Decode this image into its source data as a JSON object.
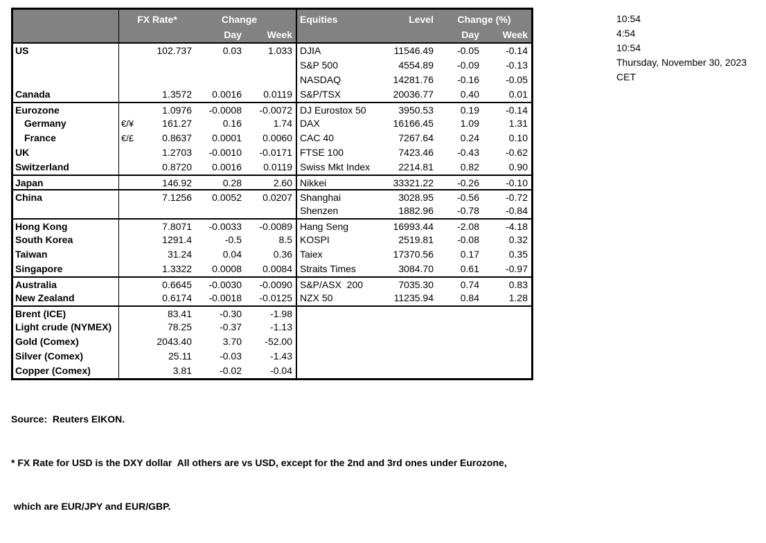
{
  "table": {
    "header": {
      "fx_rate": "FX Rate*",
      "change": "Change",
      "day": "Day",
      "week": "Week",
      "equities": "Equities",
      "level": "Level",
      "change_pct": "Change (%)"
    },
    "header_colors": {
      "background": "#828282",
      "text": "#ffffff",
      "border": "#000000"
    },
    "rows": [
      {
        "name": "US",
        "pair": "",
        "fx": "102.737",
        "fx_day": "0.03",
        "fx_week": "1.033",
        "eq": "DJIA",
        "level": "11546.49",
        "eq_day": "-0.05",
        "eq_week": "-0.14"
      },
      {
        "name": "",
        "eq": "S&P 500",
        "level": "4554.89",
        "eq_day": "-0.09",
        "eq_week": "-0.13"
      },
      {
        "name": "",
        "eq": "NASDAQ",
        "level": "14281.76",
        "eq_day": "-0.16",
        "eq_week": "-0.05"
      },
      {
        "name": "Canada",
        "fx": "1.3572",
        "fx_day": "0.0016",
        "fx_week": "0.0119",
        "eq": "S&P/TSX",
        "level": "20036.77",
        "eq_day": "0.40",
        "eq_week": "0.01"
      },
      {
        "name": "Eurozone",
        "fx": "1.0976",
        "fx_day": "-0.0008",
        "fx_week": "-0.0072",
        "eq": "DJ Eurostox 50",
        "level": "3950.53",
        "eq_day": "0.19",
        "eq_week": "-0.14"
      },
      {
        "name": "Germany",
        "pair": "€/¥",
        "fx": "161.27",
        "fx_day": "0.16",
        "fx_week": "1.74",
        "eq": "DAX",
        "level": "16166.45",
        "eq_day": "1.09",
        "eq_week": "1.31"
      },
      {
        "name": "France",
        "pair": "€/£",
        "fx": "0.8637",
        "fx_day": "0.0001",
        "fx_week": "0.0060",
        "eq": "CAC 40",
        "level": "7267.64",
        "eq_day": "0.24",
        "eq_week": "0.10"
      },
      {
        "name": "UK",
        "fx": "1.2703",
        "fx_day": "-0.0010",
        "fx_week": "-0.0171",
        "eq": "FTSE 100",
        "level": "7423.46",
        "eq_day": "-0.43",
        "eq_week": "-0.62"
      },
      {
        "name": "Switzerland",
        "fx": "0.8720",
        "fx_day": "0.0016",
        "fx_week": "0.0119",
        "eq": "Swiss Mkt Index",
        "level": "2214.81",
        "eq_day": "0.82",
        "eq_week": "0.90"
      },
      {
        "name": "Japan",
        "fx": "146.92",
        "fx_day": "0.28",
        "fx_week": "2.60",
        "eq": "Nikkei",
        "level": "33321.22",
        "eq_day": "-0.26",
        "eq_week": "-0.10"
      },
      {
        "name": "China",
        "fx": "7.1256",
        "fx_day": "0.0052",
        "fx_week": "0.0207",
        "eq": "Shanghai",
        "level": "3028.95",
        "eq_day": "-0.56",
        "eq_week": "-0.72"
      },
      {
        "name": "",
        "eq": "Shenzen",
        "level": "1882.96",
        "eq_day": "-0.78",
        "eq_week": "-0.84"
      },
      {
        "name": "Hong Kong",
        "fx": "7.8071",
        "fx_day": "-0.0033",
        "fx_week": "-0.0089",
        "eq": "Hang Seng",
        "level": "16993.44",
        "eq_day": "-2.08",
        "eq_week": "-4.18"
      },
      {
        "name": "South Korea",
        "fx": "1291.4",
        "fx_day": "-0.5",
        "fx_week": "8.5",
        "eq": "KOSPI",
        "level": "2519.81",
        "eq_day": "-0.08",
        "eq_week": "0.32"
      },
      {
        "name": "Taiwan",
        "fx": "31.24",
        "fx_day": "0.04",
        "fx_week": "0.36",
        "eq": "Taiex",
        "level": "17370.56",
        "eq_day": "0.17",
        "eq_week": "0.35"
      },
      {
        "name": "Singapore",
        "fx": "1.3322",
        "fx_day": "0.0008",
        "fx_week": "0.0084",
        "eq": "Straits Times",
        "level": "3084.70",
        "eq_day": "0.61",
        "eq_week": "-0.97"
      },
      {
        "name": "Australia",
        "fx": "0.6645",
        "fx_day": "-0.0030",
        "fx_week": "-0.0090",
        "eq": "S&P/ASX  200",
        "level": "7035.30",
        "eq_day": "0.74",
        "eq_week": "0.83"
      },
      {
        "name": "New Zealand",
        "fx": "0.6174",
        "fx_day": "-0.0018",
        "fx_week": "-0.0125",
        "eq": "NZX 50",
        "level": "11235.94",
        "eq_day": "0.84",
        "eq_week": "1.28"
      },
      {
        "name": "Brent (ICE)",
        "fx": "83.41",
        "fx_day": "-0.30",
        "fx_week": "-1.98"
      },
      {
        "name": "Light crude (NYMEX)",
        "fx": "78.25",
        "fx_day": "-0.37",
        "fx_week": "-1.13"
      },
      {
        "name": "Gold (Comex)",
        "fx": "2043.40",
        "fx_day": "3.70",
        "fx_week": "-52.00"
      },
      {
        "name": "Silver (Comex)",
        "fx": "25.11",
        "fx_day": "-0.03",
        "fx_week": "-1.43"
      },
      {
        "name": "Copper (Comex)",
        "fx": "3.81",
        "fx_day": "-0.02",
        "fx_week": "-0.04"
      }
    ]
  },
  "timestamps": {
    "lines": [
      "10:54",
      "4:54",
      "10:54",
      "Thursday, November 30, 2023",
      "CET"
    ]
  },
  "footnotes": {
    "source": "Source:  Reuters EIKON.",
    "note1": "* FX Rate for USD is the DXY dollar  All others are vs USD, except for the 2nd and 3rd ones under Eurozone,",
    "note2": " which are EUR/JPY and EUR/GBP."
  }
}
